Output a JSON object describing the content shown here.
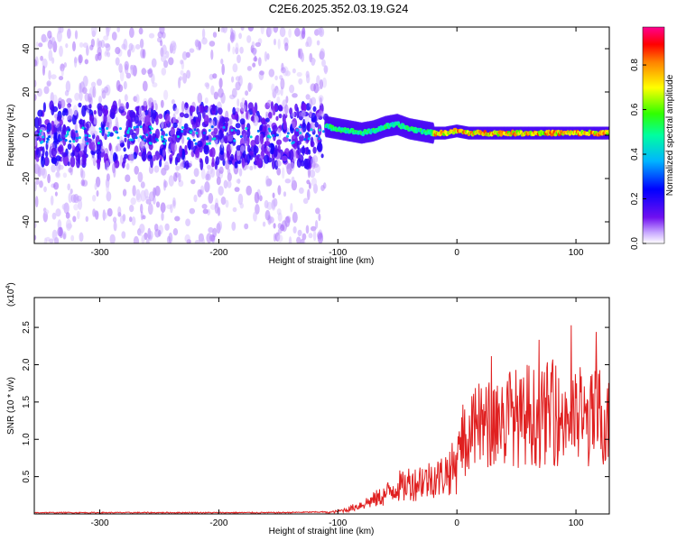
{
  "title": "C2E6.2025.352.03.19.G24",
  "colors": {
    "series": "#e02020",
    "axis": "#000000",
    "background": "#ffffff",
    "colormap": [
      "#ffffff",
      "#d0b0ff",
      "#6010f0",
      "#0000ff",
      "#00c8ff",
      "#00ff60",
      "#ffff00",
      "#ff8000",
      "#ff0000",
      "#ff0090"
    ]
  },
  "chart_data": [
    {
      "type": "heatmap",
      "xlabel": "Height of straight line (km)",
      "ylabel": "Frequency (Hz)",
      "xlim": [
        -355,
        128
      ],
      "ylim": [
        -50,
        50
      ],
      "xticks": [
        -300,
        -200,
        -100,
        0,
        100
      ],
      "xtick_labels": [
        "-300",
        "-200",
        "-100",
        "0",
        "100"
      ],
      "yticks": [
        -40,
        -20,
        0,
        20,
        40
      ],
      "ytick_labels": [
        "-40",
        "-20",
        "0",
        "20",
        "40"
      ],
      "colorbar": {
        "label": "Normalized spectral amplitude",
        "range": [
          0,
          0.97
        ],
        "ticks": [
          0.0,
          0.2,
          0.4,
          0.6,
          0.8
        ],
        "tick_labels": [
          "0.0",
          "0.2",
          "0.4",
          "0.6",
          "0.8"
        ]
      },
      "ridge": {
        "x": [
          -110,
          -100,
          -90,
          -80,
          -70,
          -60,
          -50,
          -40,
          -30,
          -20,
          -10,
          0,
          10,
          20,
          30,
          40,
          60,
          80,
          100,
          128
        ],
        "y": [
          4,
          3,
          2,
          1,
          2,
          4,
          5,
          3,
          2,
          1,
          1,
          2,
          1,
          1,
          1,
          1,
          1,
          1,
          1,
          1
        ]
      }
    },
    {
      "type": "line",
      "xlabel": "Height of straight line (km)",
      "ylabel": "SNR (10 * v/v)",
      "y_multiplier": "(x10",
      "y_exponent": "4",
      "y_multiplier_close": ")",
      "xlim": [
        -355,
        128
      ],
      "ylim": [
        0,
        2.9
      ],
      "xticks": [
        -300,
        -200,
        -100,
        0,
        100
      ],
      "xtick_labels": [
        "-300",
        "-200",
        "-100",
        "0",
        "100"
      ],
      "yticks": [
        0.5,
        1.0,
        1.5,
        2.0,
        2.5
      ],
      "ytick_labels": [
        "0.5",
        "1.0",
        "1.5",
        "2.0",
        "2.5"
      ],
      "series": [
        {
          "name": "SNR",
          "x": [
            -355,
            -300,
            -250,
            -200,
            -150,
            -110,
            -100,
            -90,
            -80,
            -70,
            -60,
            -55,
            -50,
            -45,
            -40,
            -35,
            -30,
            -25,
            -20,
            -15,
            -10,
            -5,
            0,
            5,
            10,
            15,
            20,
            25,
            30,
            35,
            40,
            45,
            50,
            55,
            60,
            65,
            70,
            75,
            80,
            85,
            90,
            95,
            100,
            105,
            110,
            115,
            120,
            125,
            128
          ],
          "values": [
            0.01,
            0.01,
            0.01,
            0.01,
            0.01,
            0.02,
            0.04,
            0.08,
            0.15,
            0.22,
            0.3,
            0.38,
            0.45,
            0.42,
            0.5,
            0.48,
            0.55,
            0.52,
            0.6,
            0.56,
            0.65,
            0.7,
            0.75,
            1.0,
            1.1,
            1.2,
            1.3,
            1.25,
            1.35,
            1.4,
            1.3,
            1.45,
            1.4,
            1.3,
            1.5,
            1.4,
            1.35,
            1.45,
            1.5,
            1.35,
            1.4,
            1.45,
            1.35,
            1.4,
            1.3,
            1.4,
            1.45,
            1.35,
            1.3
          ]
        }
      ]
    }
  ]
}
